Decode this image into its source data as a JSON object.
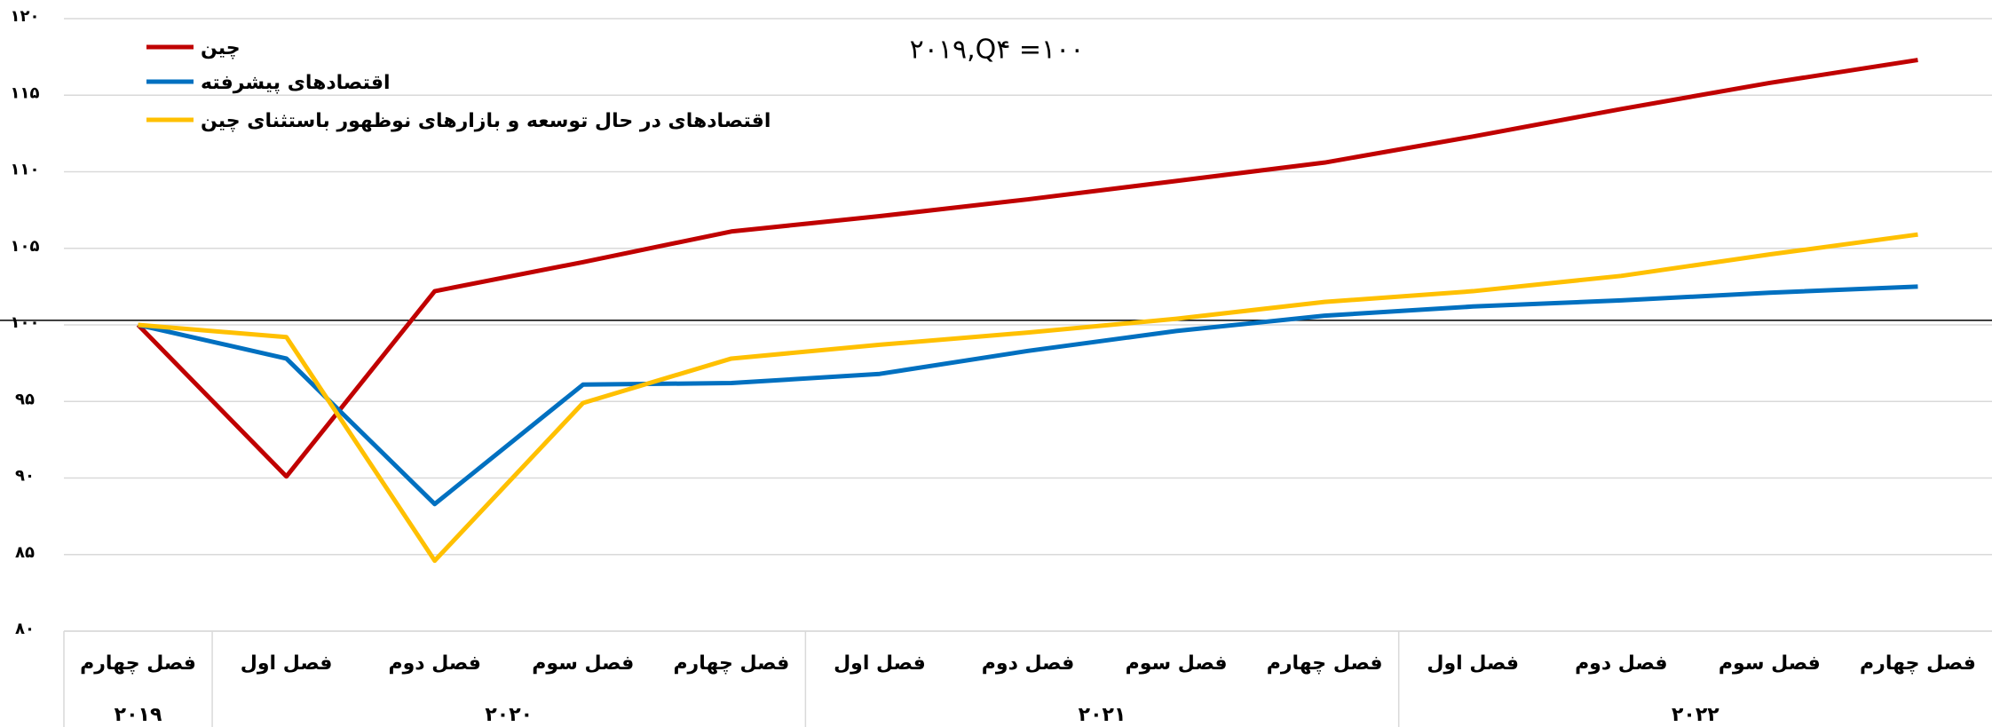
{
  "chart_data": {
    "type": "line",
    "subtitle": "۲۰۱۹,Q۴ =۱۰۰",
    "categories": [
      "فصل چهارم",
      "فصل اول",
      "فصل دوم",
      "فصل سوم",
      "فصل چهارم",
      "فصل اول",
      "فصل دوم",
      "فصل سوم",
      "فصل چهارم",
      "فصل اول",
      "فصل دوم",
      "فصل سوم",
      "فصل چهارم"
    ],
    "groups": [
      {
        "label": "۲۰۱۹",
        "count": 1
      },
      {
        "label": "۲۰۲۰",
        "count": 4
      },
      {
        "label": "۲۰۲۱",
        "count": 4
      },
      {
        "label": "۲۰۲۲",
        "count": 4
      }
    ],
    "series": [
      {
        "name": "چین",
        "color": "#c00000",
        "values": [
          100,
          90.1,
          102.2,
          104.1,
          106.1,
          107.1,
          108.2,
          109.4,
          110.6,
          112.3,
          114.1,
          115.8,
          117.3
        ]
      },
      {
        "name": "اقتصادهای پیشرفته",
        "color": "#0070c0",
        "values": [
          100,
          97.8,
          88.3,
          96.1,
          96.2,
          96.8,
          98.3,
          99.6,
          100.6,
          101.2,
          101.6,
          102.1,
          102.5
        ]
      },
      {
        "name": "اقتصادهای در حال توسعه و بازارهای نوظهور باستثنای چین",
        "color": "#ffc000",
        "values": [
          100,
          99.2,
          84.6,
          94.9,
          97.8,
          98.7,
          99.5,
          100.4,
          101.5,
          102.2,
          103.2,
          104.6,
          105.9
        ]
      }
    ],
    "ylim": [
      80,
      120
    ],
    "yticks": [
      {
        "value": 80,
        "label": "۸۰"
      },
      {
        "value": 85,
        "label": "۸۵"
      },
      {
        "value": 90,
        "label": "۹۰"
      },
      {
        "value": 95,
        "label": "۹۵"
      },
      {
        "value": 100,
        "label": "۱۰۰"
      },
      {
        "value": 105,
        "label": "۱۰۵"
      },
      {
        "value": 110,
        "label": "۱۱۰"
      },
      {
        "value": 115,
        "label": "۱۱۵"
      },
      {
        "value": 120,
        "label": "۱۲۰"
      }
    ],
    "reference_line": 100.3,
    "grid": true,
    "legend": "top-left"
  }
}
